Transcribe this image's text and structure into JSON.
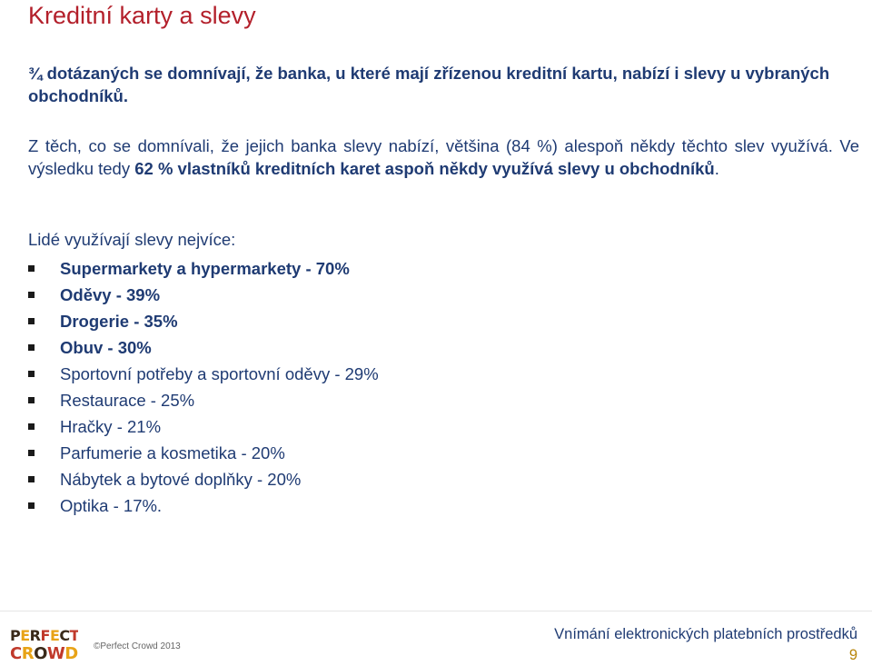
{
  "slide": {
    "title": "Kreditní karty a slevy",
    "lead": "¾ dotázaných se domnívají, že banka, u které mají zřízenou kreditní kartu, nabízí i slevy u vybraných obchodníků.",
    "para_start": "Z těch, co se domnívali, že jejich banka slevy nabízí, většina (84 %) alespoň někdy těchto slev využívá. Ve výsledku tedy ",
    "para_bold": "62 % vlastníků kreditních karet aspoň někdy využívá slevy u obchodníků",
    "para_end": ".",
    "intro": "Lidé využívají slevy nejvíce:",
    "items": [
      {
        "text": "Supermarkety a hypermarkety - 70%",
        "bold": true
      },
      {
        "text": "Oděvy - 39%",
        "bold": true
      },
      {
        "text": "Drogerie - 35%",
        "bold": true
      },
      {
        "text": "Obuv - 30%",
        "bold": true
      },
      {
        "text": "Sportovní potřeby a sportovní oděvy - 29%",
        "bold": false
      },
      {
        "text": "Restaurace - 25%",
        "bold": false
      },
      {
        "text": "Hračky - 21%",
        "bold": false
      },
      {
        "text": "Parfumerie a kosmetika - 20%",
        "bold": false
      },
      {
        "text": "Nábytek a bytové doplňky - 20%",
        "bold": false
      },
      {
        "text": "Optika - 17%.",
        "bold": false
      }
    ]
  },
  "footer": {
    "logo_text_top": "PERFECT",
    "logo_text_bottom": "CROWD",
    "copyright": "©Perfect Crowd 2013",
    "title": "Vnímání elektronických platebních prostředků",
    "page_number": "9"
  },
  "colors": {
    "title": "#b3202b",
    "text": "#1f3b73",
    "page_number": "#b8860b"
  }
}
